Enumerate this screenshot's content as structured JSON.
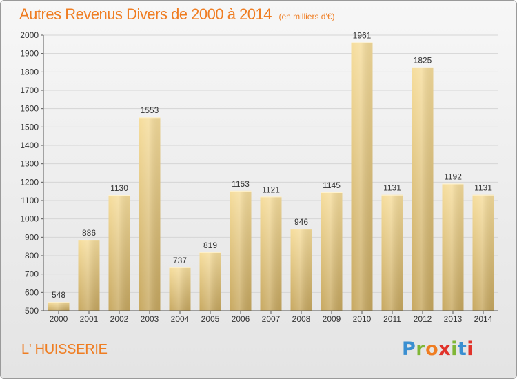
{
  "header": {
    "title": "Autres Revenus Divers de 2000 à 2014",
    "subtitle": "(en milliers d'€)"
  },
  "footer": {
    "commune": "L' HUISSERIE",
    "logo": {
      "letters": [
        "P",
        "r",
        "o",
        "x",
        "i",
        "t",
        "i"
      ],
      "colors": [
        "#3a8fd1",
        "#7fb636",
        "#ef7d22",
        "#e1332b",
        "#7fb636",
        "#3a8fd1",
        "#e1332b"
      ]
    }
  },
  "chart_data": {
    "type": "bar",
    "title": "Autres Revenus Divers de 2000 à 2014",
    "subtitle": "(en milliers d'€)",
    "xlabel": "",
    "ylabel": "",
    "categories": [
      "2000",
      "2001",
      "2002",
      "2003",
      "2004",
      "2005",
      "2006",
      "2007",
      "2008",
      "2009",
      "2010",
      "2011",
      "2012",
      "2013",
      "2014"
    ],
    "values": [
      548,
      886,
      1130,
      1553,
      737,
      819,
      1153,
      1121,
      946,
      1145,
      1961,
      1131,
      1825,
      1192,
      1131
    ],
    "ylim": [
      500,
      2000
    ],
    "yticks": [
      500,
      600,
      700,
      800,
      900,
      1000,
      1100,
      1200,
      1300,
      1400,
      1500,
      1600,
      1700,
      1800,
      1900,
      2000
    ],
    "grid": true,
    "legend": "none",
    "colors": {
      "bar_light": "#f6dd9c",
      "bar_dark": "#c7a860",
      "grid": "#d5d5d5",
      "text": "#333333",
      "accent": "#ef7d22"
    }
  }
}
